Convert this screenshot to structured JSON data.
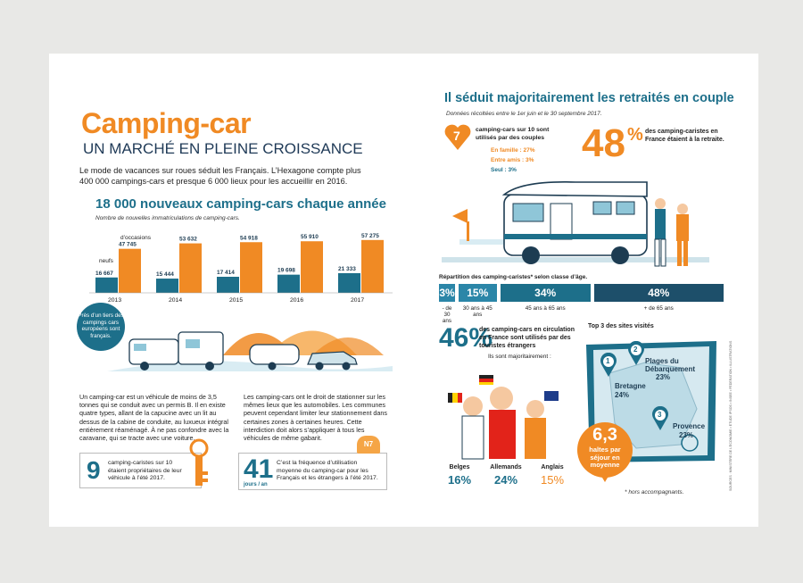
{
  "left": {
    "title": "Camping-car",
    "subtitle": "UN MARCHÉ EN PLEINE CROISSANCE",
    "intro": "Le mode de vacances sur roues séduit les Français. L’Hexagone compte plus 400 000 campings-cars et presque 6 000 lieux pour les accueillir en 2016.",
    "section_title": "18 000 nouveaux camping-cars chaque année",
    "chart_note": "Nombre de nouvelles immatriculations de camping-cars.",
    "label_occasions": "d’occasions",
    "label_neufs": "neufs",
    "bubble": "Près d’un tiers des campings cars européens sont français.",
    "bottom_left": "Un camping-car est un véhicule de moins de 3,5 tonnes qui se conduit avec un permis B. Il en existe quatre types, allant de la capucine avec un lit au dessus de la cabine de conduite, au luxueux intégral entièrement réaménagé. À ne pas confondre avec la caravane, qui se tracte avec une voiture.",
    "bottom_right": "Les camping-cars ont le droit de stationner sur les mêmes lieux que les automobiles. Les communes peuvent cependant limiter leur stationnement dans certaines zones à certaines heures. Cette interdiction doit alors s’appliquer à tous les véhicules de même gabarit.",
    "stat1_num": "9",
    "stat1_text": "camping-caristes sur 10 étaient propriétaires de leur véhicule à l’été 2017.",
    "stat2_num": "41",
    "stat2_unit": "jours / an",
    "stat2_text": "C’est la fréquence d’utilisation moyenne du camping-car pour les Français et les étrangers à l’été 2017.",
    "sign": "N7"
  },
  "right": {
    "title": "Il séduit majoritairement les retraités en couple",
    "dates": "Données récoltées entre le 1er juin et le 30 septembre 2017.",
    "couples_num": "7",
    "couples_text": "camping-cars sur 10 sont utilisés par des couples",
    "famille": "En famille : 27%",
    "amis": "Entre amis : 3%",
    "seul": "Seul :            3%",
    "retired_pct": "48",
    "retired_sym": "%",
    "retired_text": "des camping-caristes en France étaient à la retraite.",
    "age_title": "Répartition des camping-caristes* selon classe d’âge.",
    "foreign_pct": "46%",
    "foreign_text": "des camping-cars en circulation en France sont utilisés par des touristes étrangers",
    "foreign_sub": "Ils sont majoritairement :",
    "top3_title": "Top 3 des sites visités",
    "sites": [
      {
        "n": "1",
        "name": "Bretagne",
        "pct": "24%"
      },
      {
        "n": "2",
        "name": "Plages du Débarquement",
        "pct": "23%"
      },
      {
        "n": "3",
        "name": "Provence",
        "pct": "23%"
      }
    ],
    "haltes_num": "6,3",
    "haltes_text": "haltes par séjour en moyenne",
    "footnote": "* hors accompagnants.",
    "side_credit": "SOURCES : MINISTÈRE DE L’ÉCONOMIE • ÉTUDE IPSOS • INSEE • FÉDÉRATION • ILLUSTRATIONS"
  },
  "chart_data": [
    {
      "type": "bar",
      "title": "18 000 nouveaux camping-cars chaque année",
      "subtitle": "Nombre de nouvelles immatriculations de camping-cars.",
      "categories": [
        "2013",
        "2014",
        "2015",
        "2016",
        "2017"
      ],
      "series": [
        {
          "name": "neufs",
          "values": [
            16667,
            15444,
            17414,
            19698,
            21333
          ],
          "labels": [
            "16 667",
            "15 444",
            "17 414",
            "19 698",
            "21 333"
          ],
          "color": "#1d6f8a"
        },
        {
          "name": "d’occasions",
          "values": [
            47745,
            53632,
            54918,
            55910,
            57275
          ],
          "labels": [
            "47 745",
            "53 632",
            "54 918",
            "55 910",
            "57 275"
          ],
          "color": "#f08a24"
        }
      ],
      "ylim": [
        0,
        60000
      ]
    },
    {
      "type": "bar",
      "title": "Répartition des camping-caristes* selon classe d’âge.",
      "categories": [
        "- de 30 ans",
        "30 ans à 45 ans",
        "45 ans à 65 ans",
        "+ de 65 ans"
      ],
      "values": [
        3,
        15,
        34,
        48
      ],
      "labels": [
        "3%",
        "15%",
        "34%",
        "48%"
      ]
    },
    {
      "type": "bar",
      "title": "Touristes étrangers",
      "categories": [
        "Belges",
        "Allemands",
        "Anglais"
      ],
      "values": [
        16,
        24,
        15
      ],
      "labels": [
        "16%",
        "24%",
        "15%"
      ]
    }
  ]
}
